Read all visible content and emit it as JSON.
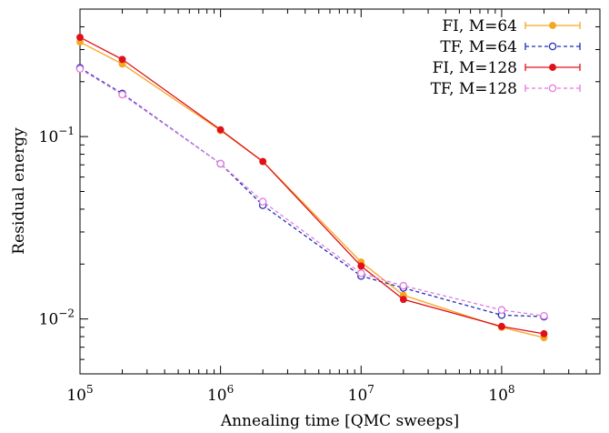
{
  "chart_data": {
    "type": "line",
    "xlabel": "Annealing time [QMC sweeps]",
    "ylabel": "Residual energy",
    "x_scale": "log",
    "y_scale": "log",
    "xlim": [
      100000,
      500000000
    ],
    "ylim": [
      0.005,
      0.5
    ],
    "x_ticks": [
      {
        "value": 100000,
        "base": "10",
        "exp": "5"
      },
      {
        "value": 1000000,
        "base": "10",
        "exp": "6"
      },
      {
        "value": 10000000,
        "base": "10",
        "exp": "7"
      },
      {
        "value": 100000000,
        "base": "10",
        "exp": "8"
      }
    ],
    "y_ticks": [
      {
        "value": 0.1,
        "base": "10",
        "exp": "−1"
      },
      {
        "value": 0.01,
        "base": "10",
        "exp": "−2"
      }
    ],
    "grid": false,
    "legend_position": "top-right",
    "x": [
      100000,
      200000,
      1000000,
      2000000,
      10000000,
      20000000,
      100000000,
      200000000
    ],
    "series": [
      {
        "name": "FI, M=64",
        "color": "#f5a623",
        "dashed": false,
        "marker": "filled-circle",
        "values": [
          0.33,
          0.25,
          0.108,
          0.073,
          0.0205,
          0.0135,
          0.009,
          0.0079
        ]
      },
      {
        "name": "TF, M=64",
        "color": "#1f2fb5",
        "dashed": true,
        "marker": "open-circle",
        "values": [
          0.238,
          0.172,
          0.071,
          0.042,
          0.0172,
          0.0148,
          0.0105,
          0.0103
        ]
      },
      {
        "name": "FI, M=128",
        "color": "#e0101a",
        "dashed": false,
        "marker": "filled-circle",
        "values": [
          0.35,
          0.265,
          0.109,
          0.073,
          0.0195,
          0.0128,
          0.0091,
          0.0083
        ]
      },
      {
        "name": "TF, M=128",
        "color": "#e07ae0",
        "dashed": true,
        "marker": "open-circle",
        "values": [
          0.235,
          0.17,
          0.071,
          0.044,
          0.0178,
          0.0152,
          0.0112,
          0.0104
        ]
      }
    ]
  }
}
